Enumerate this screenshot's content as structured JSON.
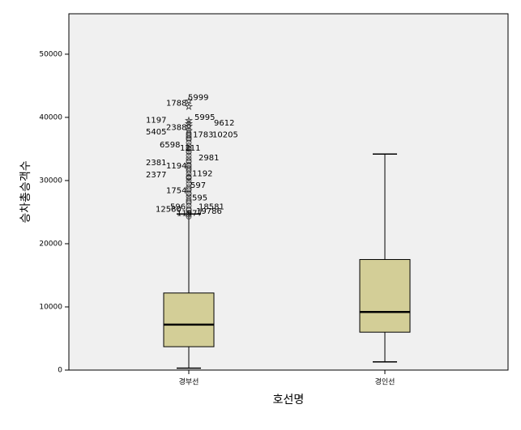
{
  "chart_data": {
    "type": "box",
    "y_label": "승차총승객수",
    "x_label": "호선명",
    "categories": [
      "경부선",
      "경인선"
    ],
    "color": "#d3ce97",
    "ylim": [
      0,
      56400
    ],
    "yticks": [
      0,
      10000,
      20000,
      30000,
      40000,
      50000
    ],
    "boxes": [
      {
        "min": 300,
        "q1": 3700,
        "median": 7200,
        "q3": 12200,
        "max": 24700,
        "outliers": [
          {
            "label": "5999",
            "value": 42600,
            "marker": "star"
          },
          {
            "label": "1788",
            "value": 41700,
            "marker": "star"
          },
          {
            "label": "1197",
            "value": 39000,
            "marker": "star"
          },
          {
            "label": "5995",
            "value": 39500,
            "marker": "star"
          },
          {
            "label": "9612",
            "value": 38600,
            "marker": "star"
          },
          {
            "label": "2388",
            "value": 37900,
            "marker": "star"
          },
          {
            "label": "5405",
            "value": 37200,
            "marker": "circle"
          },
          {
            "label": "1783",
            "value": 36700,
            "marker": "circle"
          },
          {
            "label": "10205",
            "value": 36700,
            "marker": "circle"
          },
          {
            "label": "6598",
            "value": 35100,
            "marker": "circle"
          },
          {
            "label": "1211",
            "value": 34600,
            "marker": "circle"
          },
          {
            "label": "2981",
            "value": 33100,
            "marker": "circle"
          },
          {
            "label": "2381",
            "value": 32300,
            "marker": "circle"
          },
          {
            "label": "1194",
            "value": 31800,
            "marker": "circle"
          },
          {
            "label": "2377",
            "value": 30400,
            "marker": "circle"
          },
          {
            "label": "1192",
            "value": 30600,
            "marker": "circle"
          },
          {
            "label": "1754",
            "value": 27900,
            "marker": "circle"
          },
          {
            "label": "597",
            "value": 28700,
            "marker": "circle"
          },
          {
            "label": "595",
            "value": 26700,
            "marker": "circle"
          },
          {
            "label": "596",
            "value": 25300,
            "marker": "circle"
          },
          {
            "label": "18581",
            "value": 25300,
            "marker": "circle"
          },
          {
            "label": "12580",
            "value": 24900,
            "marker": "circle"
          },
          {
            "label": "19786",
            "value": 24600,
            "marker": "circle"
          },
          {
            "label": "11977",
            "value": 24300,
            "marker": "circle"
          }
        ],
        "unlabeled_outliers": [
          25500,
          26000,
          26500,
          27000,
          27500,
          28000,
          28500,
          29000,
          29500,
          30000,
          30500,
          31000,
          31500,
          32000,
          32500,
          33000,
          33500,
          34000,
          34500,
          35000,
          35500,
          36000,
          36500,
          37000,
          37500
        ]
      },
      {
        "min": 1300,
        "q1": 6000,
        "median": 9200,
        "q3": 17500,
        "max": 34200
      }
    ]
  }
}
